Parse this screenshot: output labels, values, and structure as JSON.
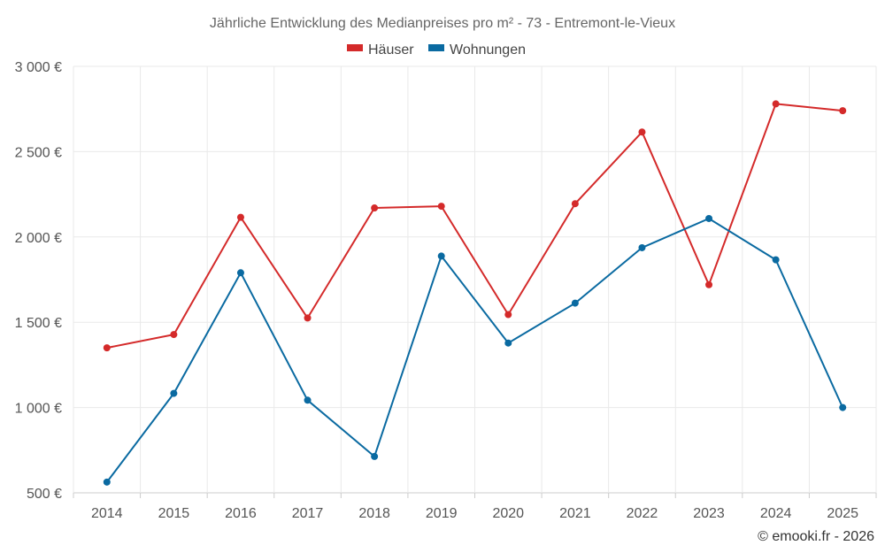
{
  "chart_data": {
    "type": "line",
    "title": "Jährliche Entwicklung des Medianpreises pro m² - 73 - Entremont-le-Vieux",
    "categories": [
      "2014",
      "2015",
      "2016",
      "2017",
      "2018",
      "2019",
      "2020",
      "2021",
      "2022",
      "2023",
      "2024",
      "2025"
    ],
    "series": [
      {
        "name": "Häuser",
        "color": "#d42a2a",
        "values": [
          1350,
          1428,
          2115,
          1525,
          2170,
          2180,
          1545,
          2195,
          2615,
          1720,
          2780,
          2740
        ]
      },
      {
        "name": "Wohnungen",
        "color": "#0a6aa1",
        "values": [
          563,
          1083,
          1790,
          1043,
          713,
          1888,
          1378,
          1612,
          1937,
          2108,
          1866,
          1000
        ]
      }
    ],
    "ylim": [
      500,
      3000
    ],
    "yticks": [
      500,
      1000,
      1500,
      2000,
      2500,
      3000
    ],
    "ytick_labels": [
      "500 €",
      "1 000 €",
      "1 500 €",
      "2 000 €",
      "2 500 €",
      "3 000 €"
    ],
    "xlabel": "",
    "ylabel": "",
    "legend_position": "top-center",
    "grid": true
  },
  "credit": "© emooki.fr - 2026"
}
